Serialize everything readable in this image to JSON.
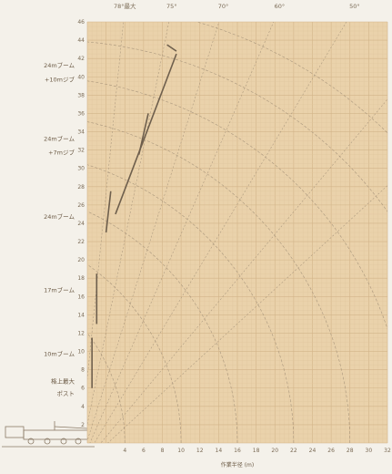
{
  "chart_data": {
    "type": "line",
    "title": "",
    "xlabel": "作業半径 (m)",
    "ylabel": "",
    "xlim": [
      0,
      32
    ],
    "ylim": [
      0,
      46
    ],
    "x_ticks": [
      4,
      6,
      8,
      10,
      12,
      14,
      16,
      18,
      20,
      22,
      24,
      26,
      28,
      30,
      32
    ],
    "y_ticks": [
      2,
      4,
      6,
      8,
      10,
      12,
      14,
      16,
      18,
      20,
      22,
      24,
      26,
      28,
      30,
      32,
      34,
      36,
      38,
      40,
      42,
      44,
      46
    ],
    "grid": true,
    "angle_labels": [
      {
        "text": "78°最大",
        "x": 4,
        "y": 47.5
      },
      {
        "text": "75°",
        "x": 9,
        "y": 47.5
      },
      {
        "text": "70°",
        "x": 14.5,
        "y": 47.5
      },
      {
        "text": "60°",
        "x": 20.5,
        "y": 47.5
      },
      {
        "text": "50°",
        "x": 28.5,
        "y": 47.5
      }
    ],
    "boom_labels": [
      {
        "text": "24mブーム",
        "y": 41
      },
      {
        "text": "+10mジブ",
        "y": 39.5
      },
      {
        "text": "24mブーム",
        "y": 33
      },
      {
        "text": "+7mジブ",
        "y": 31.5
      },
      {
        "text": "24mブーム",
        "y": 24.5
      },
      {
        "text": "17mブーム",
        "y": 16.5
      },
      {
        "text": "10mブーム",
        "y": 9.5
      },
      {
        "text": "格上最大",
        "y": 6.5
      },
      {
        "text": "ポスト",
        "y": 5.2
      }
    ],
    "series": [
      {
        "values": [
          [
            0.5,
            6
          ],
          [
            0.5,
            11.5
          ]
        ]
      },
      {
        "values": [
          [
            1,
            13
          ],
          [
            1,
            18.5
          ]
        ]
      },
      {
        "values": [
          [
            2,
            23
          ],
          [
            2.5,
            27.5
          ]
        ]
      },
      {
        "values": [
          [
            5.5,
            31.5
          ],
          [
            6.5,
            36
          ]
        ]
      },
      {
        "values": [
          [
            3,
            25
          ],
          [
            9.5,
            42.5
          ]
        ]
      },
      {
        "values": [
          [
            8.5,
            43.5
          ],
          [
            9.5,
            42.8
          ]
        ]
      }
    ]
  }
}
